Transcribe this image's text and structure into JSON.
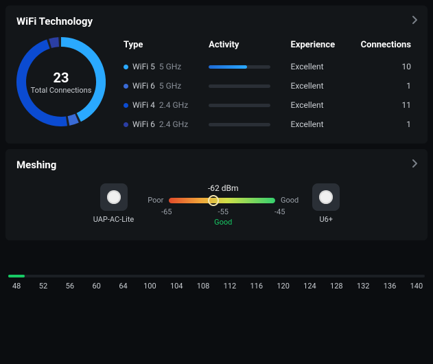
{
  "wifi": {
    "title": "WiFi Technology",
    "total": 23,
    "total_label": "Total Connections",
    "donut": {
      "size": 130,
      "stroke": 14,
      "track_color": "#1b1f24",
      "segments": [
        {
          "fraction": 0.435,
          "color": "#2aa9ff"
        },
        {
          "fraction": 0.043,
          "color": "#3a6bd6"
        },
        {
          "fraction": 0.478,
          "color": "#0b4bd1"
        },
        {
          "fraction": 0.043,
          "color": "#2b3ea3"
        }
      ],
      "gap_deg": 3,
      "start_deg": -90
    },
    "headers": {
      "type": "Type",
      "activity": "Activity",
      "experience": "Experience",
      "connections": "Connections"
    },
    "rows": [
      {
        "dot": "#2aa9ff",
        "name": "WiFi 5",
        "band": "5 GHz",
        "activity_pct": 62,
        "activity_fill": "linear-gradient(90deg,#1e6bd6,#2aa9ff)",
        "experience": "Excellent",
        "connections": 10
      },
      {
        "dot": "#3a6bd6",
        "name": "WiFi 6",
        "band": "5 GHz",
        "activity_pct": 6,
        "activity_fill": "#2a2f36",
        "experience": "Excellent",
        "connections": 1
      },
      {
        "dot": "#0b4bd1",
        "name": "WiFi 4",
        "band": "2.4 GHz",
        "activity_pct": 8,
        "activity_fill": "#2a2f36",
        "experience": "Excellent",
        "connections": 11
      },
      {
        "dot": "#2b3ea3",
        "name": "WiFi 6",
        "band": "2.4 GHz",
        "activity_pct": 6,
        "activity_fill": "#2a2f36",
        "experience": "Excellent",
        "connections": 1
      }
    ]
  },
  "mesh": {
    "title": "Meshing",
    "dbm": "-62 dBm",
    "left_node": "UAP-AC-Lite",
    "right_node": "U6+",
    "end_poor": "Poor",
    "end_good": "Good",
    "ticks": [
      "-65",
      "-55",
      "-45"
    ],
    "quality": "Good",
    "marker_pct": 42
  },
  "strip": {
    "fill_pct": 4,
    "ticks": [
      48,
      52,
      56,
      60,
      64,
      100,
      104,
      108,
      112,
      116,
      120,
      124,
      128,
      132,
      136,
      140
    ]
  }
}
